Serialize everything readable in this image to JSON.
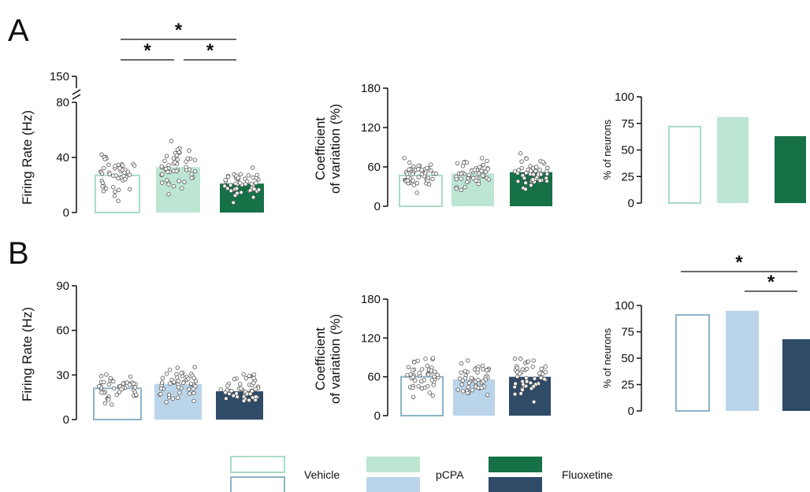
{
  "colors": {
    "vehicle_a": "#a8dcc2",
    "pcpa_a": "#bde5d3",
    "fluox_a": "#167147",
    "vehicle_b": "#8db3c8",
    "pcpa_b": "#bad4ea",
    "fluox_b": "#2f4b67",
    "dot_edge": "#555555"
  },
  "panel_labels": [
    "A",
    "B"
  ],
  "legend": {
    "vehicle": "Vehicle",
    "pcpa": "pCPA",
    "fluoxetine": "Fluoxetine"
  },
  "significance_symbol": "*",
  "chart_data": [
    {
      "id": "A-firing-rate",
      "type": "bar",
      "panel": "A",
      "categories": [
        "Vehicle",
        "pCPA",
        "Fluoxetine"
      ],
      "values": [
        27,
        33,
        21
      ],
      "ylabel": "Firing Rate (Hz)",
      "ylim": [
        0,
        80
      ],
      "yticks": [
        "0",
        "40",
        "80",
        "150"
      ],
      "axis_break": true,
      "significance": [
        [
          "Vehicle",
          "Fluoxetine"
        ],
        [
          "Vehicle",
          "pCPA"
        ],
        [
          "pCPA",
          "Fluoxetine"
        ]
      ]
    },
    {
      "id": "A-cv",
      "type": "bar",
      "panel": "A",
      "categories": [
        "Vehicle",
        "pCPA",
        "Fluoxetine"
      ],
      "values": [
        47,
        50,
        52
      ],
      "ylabel_lines": [
        "Coefficient",
        "of variation (%)"
      ],
      "ylim": [
        0,
        180
      ],
      "yticks": [
        "0",
        "60",
        "120",
        "180"
      ]
    },
    {
      "id": "A-percent",
      "type": "bar",
      "panel": "A",
      "categories": [
        "Vehicle",
        "pCPA",
        "Fluoxetine"
      ],
      "values": [
        72,
        81,
        63
      ],
      "ylabel": "% of neurons",
      "ylim": [
        0,
        100
      ],
      "yticks": [
        "0",
        "25",
        "50",
        "75",
        "100"
      ]
    },
    {
      "id": "B-firing-rate",
      "type": "bar",
      "panel": "B",
      "categories": [
        "Vehicle",
        "pCPA",
        "Fluoxetine"
      ],
      "values": [
        21,
        24,
        19
      ],
      "ylabel": "Firing Rate (Hz)",
      "ylim": [
        0,
        90
      ],
      "yticks": [
        "0",
        "30",
        "60",
        "90"
      ]
    },
    {
      "id": "B-cv",
      "type": "bar",
      "panel": "B",
      "categories": [
        "Vehicle",
        "pCPA",
        "Fluoxetine"
      ],
      "values": [
        60,
        56,
        60
      ],
      "ylabel_lines": [
        "Coefficient",
        "of variation (%)"
      ],
      "ylim": [
        0,
        180
      ],
      "yticks": [
        "0",
        "60",
        "120",
        "180"
      ]
    },
    {
      "id": "B-percent",
      "type": "bar",
      "panel": "B",
      "categories": [
        "Vehicle",
        "pCPA",
        "Fluoxetine"
      ],
      "values": [
        91,
        95,
        68
      ],
      "ylabel": "% of neurons",
      "ylim": [
        0,
        100
      ],
      "yticks": [
        "0",
        "25",
        "50",
        "75",
        "100"
      ],
      "significance": [
        [
          "Vehicle",
          "Fluoxetine"
        ],
        [
          "pCPA",
          "Fluoxetine"
        ]
      ]
    }
  ]
}
